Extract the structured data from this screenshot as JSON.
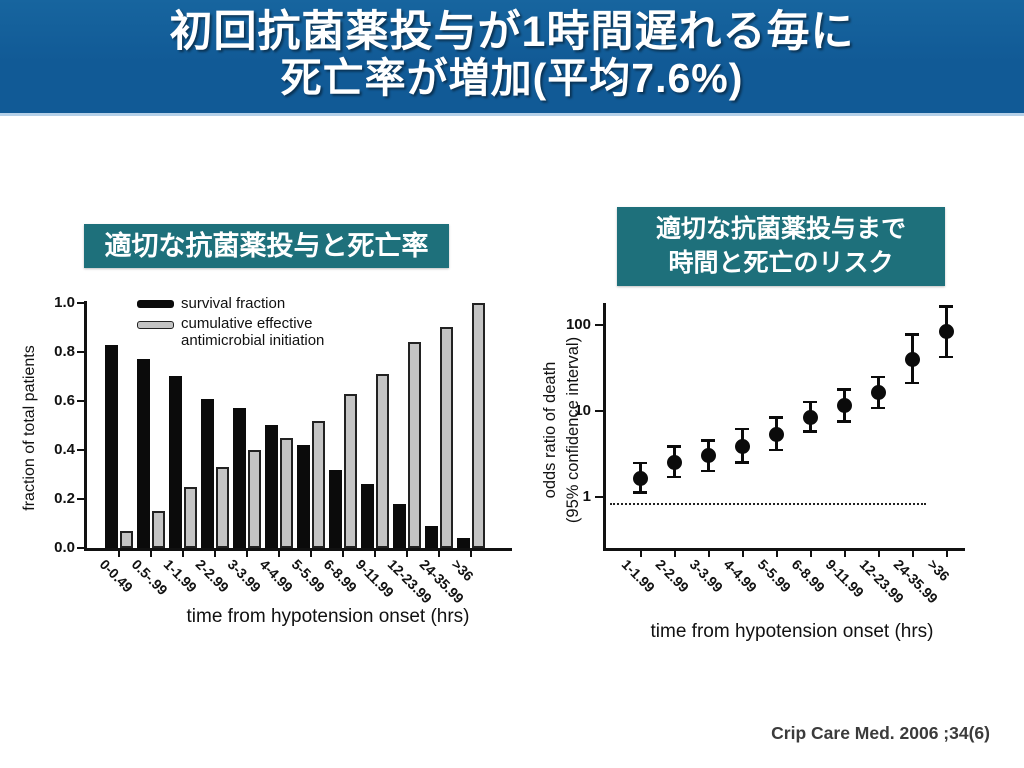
{
  "header": {
    "title_line1": "初回抗菌薬投与が1時間遅れる毎に",
    "title_line2": "死亡率が増加(平均7.6%)"
  },
  "left_panel": {
    "title": "適切な抗菌薬投与と死亡率"
  },
  "right_panel": {
    "title_line1": "適切な抗菌薬投与まで",
    "title_line2": "時間と死亡のリスク"
  },
  "citation": "Crip Care Med. 2006 ;34(6)",
  "colors": {
    "header_bg": "#115a96",
    "header_bg_light": "#17659f",
    "header_border": "#b5d0e8",
    "panel_title_bg": "#1e707b",
    "bar_black": "#0b0b0b",
    "bar_gray": "#c4c4c4",
    "ink": "#111111"
  },
  "chart_data": [
    {
      "type": "bar",
      "title": "適切な抗菌薬投与と死亡率",
      "categories": [
        "0-0.49",
        "0.5-.99",
        "1-1.99",
        "2-2.99",
        "3-3.99",
        "4-4.99",
        "5-5.99",
        "6-8.99",
        "9-11.99",
        "12-23.99",
        "24-35.99",
        ">36"
      ],
      "series": [
        {
          "name": "survival fraction",
          "color": "#0b0b0b",
          "values": [
            0.83,
            0.77,
            0.7,
            0.61,
            0.57,
            0.5,
            0.42,
            0.32,
            0.26,
            0.18,
            0.09,
            0.04
          ]
        },
        {
          "name": "cumulative effective antimicrobial initiation",
          "color": "#c4c4c4",
          "values": [
            0.07,
            0.15,
            0.25,
            0.33,
            0.4,
            0.45,
            0.52,
            0.63,
            0.71,
            0.84,
            0.9,
            1.0
          ]
        }
      ],
      "xlabel": "time from hypotension onset (hrs)",
      "ylabel": "fraction of total patients",
      "ylim": [
        0,
        1.0
      ],
      "ytick_labels": [
        "0.0",
        "0.2",
        "0.4",
        "0.6",
        "0.8",
        "1.0"
      ],
      "grid": false,
      "legend_position": "top-left-inside"
    },
    {
      "type": "scatter",
      "title": "適切な抗菌薬投与まで時間と死亡のリスク",
      "yscale": "log",
      "categories": [
        "1-1.99",
        "2-2.99",
        "3-3.99",
        "4-4.99",
        "5-5.99",
        "6-8.99",
        "9-11.99",
        "12-23.99",
        "24-35.99",
        ">36"
      ],
      "values": [
        1.65,
        2.55,
        3.0,
        3.9,
        5.4,
        8.5,
        11.5,
        16.5,
        40,
        85
      ],
      "ci_low": [
        1.12,
        1.7,
        2.0,
        2.5,
        3.5,
        5.7,
        7.5,
        10.8,
        21,
        42
      ],
      "ci_high": [
        2.5,
        3.9,
        4.6,
        6.2,
        8.5,
        12.8,
        18,
        25,
        78,
        165
      ],
      "reference_line": 0.85,
      "xlabel": "time from hypotension onset (hrs)",
      "ylabel_lines": [
        "odds ratio of death",
        "(95% confidence interval)"
      ],
      "yticks": [
        1,
        10,
        100
      ],
      "ylim": [
        0.3,
        250
      ],
      "grid": false
    }
  ]
}
